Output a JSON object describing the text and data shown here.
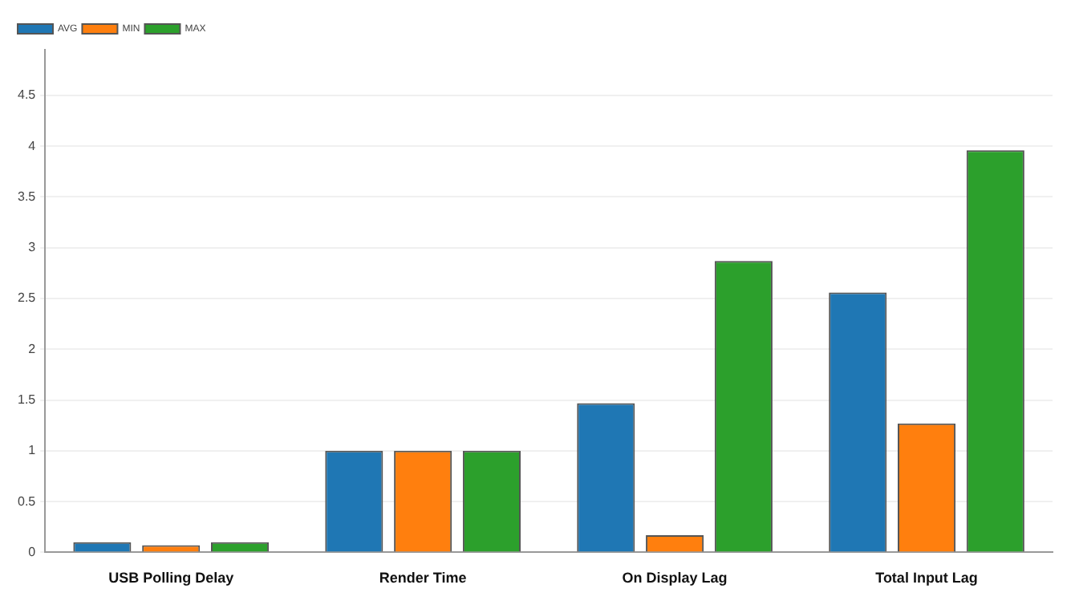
{
  "chart_data": {
    "type": "bar",
    "categories": [
      "USB Polling Delay",
      "Render Time",
      "On Display Lag",
      "Total Input Lag"
    ],
    "series": [
      {
        "name": "AVG",
        "color": "#1f77b4",
        "values": [
          0.1,
          1,
          1.47,
          2.56
        ]
      },
      {
        "name": "MIN",
        "color": "#ff7f0e",
        "values": [
          0.07,
          1,
          0.17,
          1.27
        ]
      },
      {
        "name": "MAX",
        "color": "#2ca02c",
        "values": [
          0.1,
          1,
          2.87,
          3.96
        ]
      }
    ],
    "ylim": [
      0,
      4.95
    ],
    "yticks": [
      0,
      0.5,
      1,
      1.5,
      2,
      2.5,
      3,
      3.5,
      4,
      4.5
    ],
    "grid": "y",
    "legend": "top left"
  }
}
